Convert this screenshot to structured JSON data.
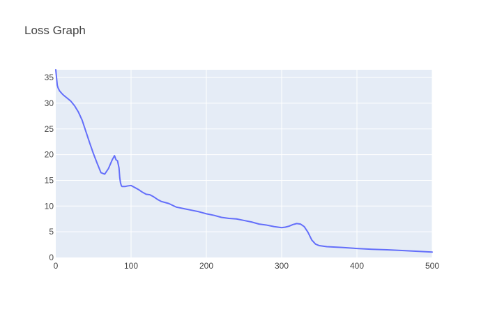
{
  "chart_data": {
    "type": "line",
    "title": "Loss Graph",
    "xlabel": "",
    "ylabel": "",
    "xlim": [
      0,
      500
    ],
    "ylim": [
      0,
      36.5
    ],
    "x_ticks": [
      0,
      100,
      200,
      300,
      400,
      500
    ],
    "y_ticks": [
      0,
      5,
      10,
      15,
      20,
      25,
      30,
      35
    ],
    "grid": true,
    "legend": "none",
    "colors": {
      "line": "#636efa",
      "plot_bg": "#e5ecf6",
      "grid": "#ffffff",
      "text": "#444444"
    },
    "series": [
      {
        "x": [
          0,
          1,
          2,
          3,
          5,
          8,
          10,
          15,
          20,
          25,
          30,
          35,
          40,
          45,
          50,
          55,
          60,
          65,
          70,
          75,
          78,
          80,
          82,
          84,
          85,
          86,
          87,
          88,
          89,
          90,
          92,
          95,
          100,
          105,
          110,
          115,
          120,
          125,
          130,
          135,
          140,
          145,
          150,
          160,
          170,
          180,
          190,
          200,
          210,
          220,
          230,
          240,
          250,
          260,
          270,
          280,
          290,
          300,
          305,
          310,
          315,
          320,
          325,
          330,
          335,
          340,
          345,
          350,
          360,
          380,
          400,
          420,
          440,
          460,
          480,
          500
        ],
        "y": [
          36.5,
          35.0,
          33.5,
          33.0,
          32.4,
          31.9,
          31.6,
          31.0,
          30.4,
          29.5,
          28.3,
          26.7,
          24.5,
          22.3,
          20.2,
          18.3,
          16.5,
          16.2,
          17.3,
          19.0,
          19.8,
          19.0,
          18.8,
          17.4,
          15.5,
          14.5,
          14.0,
          13.8,
          13.8,
          13.8,
          13.8,
          13.9,
          14.0,
          13.6,
          13.2,
          12.7,
          12.3,
          12.2,
          11.8,
          11.3,
          10.9,
          10.7,
          10.5,
          9.8,
          9.5,
          9.2,
          8.9,
          8.5,
          8.2,
          7.8,
          7.6,
          7.5,
          7.2,
          6.9,
          6.5,
          6.3,
          6.0,
          5.8,
          5.9,
          6.1,
          6.4,
          6.6,
          6.5,
          6.0,
          4.9,
          3.4,
          2.6,
          2.3,
          2.1,
          1.95,
          1.75,
          1.6,
          1.5,
          1.35,
          1.2,
          1.05
        ]
      }
    ]
  }
}
